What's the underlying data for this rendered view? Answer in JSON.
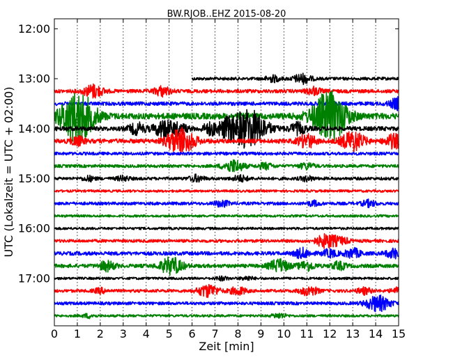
{
  "chart_data": {
    "type": "line",
    "title": "BW.RJOB..EHZ 2015-08-20",
    "xlabel": "Zeit  [min]",
    "ylabel": "UTC (Lokalzeit = UTC + 02:00)",
    "xlim": [
      0,
      15
    ],
    "x_ticks": [
      "0",
      "1",
      "2",
      "3",
      "4",
      "5",
      "6",
      "7",
      "8",
      "9",
      "10",
      "11",
      "12",
      "13",
      "14",
      "15"
    ],
    "y_ticks": [
      "12:00",
      "13:00",
      "14:00",
      "15:00",
      "16:00",
      "17:00"
    ],
    "y_tick_hours": [
      12,
      13,
      14,
      15,
      16,
      17
    ],
    "ylim_hours": [
      11.8,
      17.95
    ],
    "grid": "vertical-dotted",
    "trace_interval_hours": 0.25,
    "color_cycle": [
      "#000000",
      "#ff0000",
      "#0000ff",
      "#008000"
    ],
    "traces": [
      {
        "start": "13:00",
        "x_start": 6.0,
        "amp": 0.1,
        "bursts": [
          [
            9.5,
            0.4
          ],
          [
            10.8,
            0.6
          ]
        ]
      },
      {
        "start": "13:15",
        "x_start": 0,
        "amp": 0.12,
        "bursts": [
          [
            1.7,
            0.7
          ],
          [
            4.7,
            0.5
          ],
          [
            11.3,
            0.4
          ]
        ]
      },
      {
        "start": "13:30",
        "x_start": 0,
        "amp": 0.12,
        "bursts": [
          [
            15.0,
            0.6
          ]
        ]
      },
      {
        "start": "13:45",
        "x_start": 0,
        "amp": 0.2,
        "bursts": [
          [
            1.0,
            1.6
          ],
          [
            12.0,
            1.6
          ]
        ]
      },
      {
        "start": "14:00",
        "x_start": 0,
        "amp": 0.14,
        "bursts": [
          [
            3.6,
            0.5
          ],
          [
            4.8,
            0.8
          ],
          [
            5.5,
            0.4
          ],
          [
            6.8,
            0.5
          ],
          [
            7.5,
            0.5
          ],
          [
            8.4,
            1.8
          ],
          [
            10.6,
            0.5
          ]
        ]
      },
      {
        "start": "14:15",
        "x_start": 0,
        "amp": 0.14,
        "bursts": [
          [
            1.0,
            0.4
          ],
          [
            5.5,
            1.2
          ],
          [
            11.0,
            0.6
          ],
          [
            13.0,
            0.9
          ],
          [
            14.8,
            0.6
          ]
        ]
      },
      {
        "start": "14:30",
        "x_start": 0,
        "amp": 0.1,
        "bursts": []
      },
      {
        "start": "14:45",
        "x_start": 0,
        "amp": 0.1,
        "bursts": [
          [
            7.8,
            0.8
          ],
          [
            9.2,
            0.4
          ],
          [
            11.0,
            0.4
          ]
        ]
      },
      {
        "start": "15:00",
        "x_start": 0,
        "amp": 0.1,
        "bursts": [
          [
            1.5,
            0.3
          ],
          [
            3.0,
            0.3
          ],
          [
            6.2,
            0.4
          ],
          [
            8.1,
            0.4
          ],
          [
            11.0,
            0.3
          ]
        ]
      },
      {
        "start": "15:15",
        "x_start": 0,
        "amp": 0.08,
        "bursts": []
      },
      {
        "start": "15:30",
        "x_start": 0,
        "amp": 0.1,
        "bursts": [
          [
            7.3,
            0.4
          ],
          [
            11.3,
            0.3
          ],
          [
            13.7,
            0.4
          ]
        ]
      },
      {
        "start": "15:45",
        "x_start": 0,
        "amp": 0.08,
        "bursts": []
      },
      {
        "start": "16:00",
        "x_start": 0,
        "amp": 0.08,
        "bursts": []
      },
      {
        "start": "16:15",
        "x_start": 0,
        "amp": 0.1,
        "bursts": [
          [
            11.9,
            0.9
          ],
          [
            12.6,
            0.3
          ]
        ]
      },
      {
        "start": "16:30",
        "x_start": 0,
        "amp": 0.12,
        "bursts": [
          [
            10.8,
            0.5
          ],
          [
            12.0,
            0.4
          ],
          [
            13.0,
            0.5
          ],
          [
            14.8,
            0.5
          ]
        ]
      },
      {
        "start": "16:45",
        "x_start": 0,
        "amp": 0.12,
        "bursts": [
          [
            2.3,
            0.5
          ],
          [
            5.1,
            0.9
          ],
          [
            9.8,
            0.7
          ],
          [
            11.0,
            0.5
          ],
          [
            12.4,
            0.4
          ]
        ]
      },
      {
        "start": "17:00",
        "x_start": 0,
        "amp": 0.08,
        "bursts": [
          [
            7.3,
            0.3
          ],
          [
            8.4,
            0.3
          ]
        ]
      },
      {
        "start": "17:15",
        "x_start": 0,
        "amp": 0.1,
        "bursts": [
          [
            2.0,
            0.3
          ],
          [
            6.7,
            0.8
          ],
          [
            8.0,
            0.5
          ],
          [
            11.1,
            0.6
          ],
          [
            13.5,
            0.4
          ],
          [
            15.0,
            0.4
          ]
        ]
      },
      {
        "start": "17:30",
        "x_start": 0,
        "amp": 0.1,
        "bursts": [
          [
            14.1,
            1.0
          ]
        ]
      },
      {
        "start": "17:45",
        "x_start": 0,
        "amp": 0.08,
        "bursts": [
          [
            1.5,
            0.3
          ],
          [
            9.8,
            0.4
          ]
        ]
      }
    ]
  }
}
